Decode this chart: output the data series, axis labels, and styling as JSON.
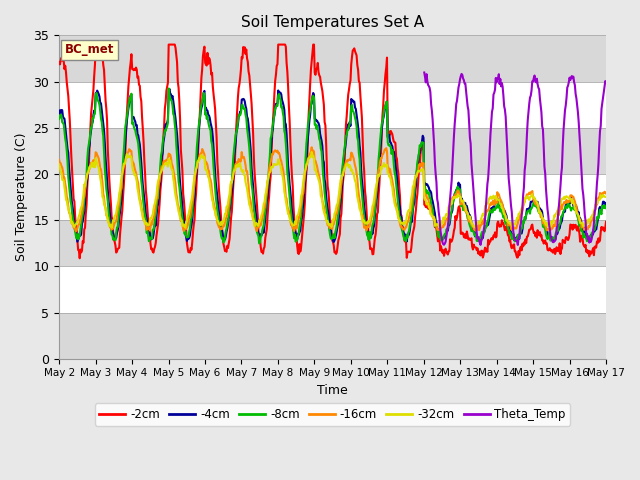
{
  "title": "Soil Temperatures Set A",
  "xlabel": "Time",
  "ylabel": "Soil Temperature (C)",
  "ylim": [
    0,
    35
  ],
  "annotation": "BC_met",
  "bg_color": "#e8e8e8",
  "white_band_color": "#ffffff",
  "gray_band_color": "#d8d8d8",
  "series": [
    {
      "label": "-2cm",
      "color": "#ff0000",
      "lw": 1.5
    },
    {
      "label": "-4cm",
      "color": "#000099",
      "lw": 1.5
    },
    {
      "label": "-8cm",
      "color": "#00bb00",
      "lw": 1.5
    },
    {
      "label": "-16cm",
      "color": "#ff8800",
      "lw": 1.5
    },
    {
      "label": "-32cm",
      "color": "#dddd00",
      "lw": 1.5
    },
    {
      "label": "Theta_Temp",
      "color": "#9900cc",
      "lw": 1.5
    }
  ],
  "tick_labels": [
    "May 2",
    "May 3",
    "May 4",
    "May 5",
    "May 6",
    "May 7",
    "May 8",
    "May 9",
    "May 10",
    "May 11",
    "May 12",
    "May 13",
    "May 14",
    "May 15",
    "May 16",
    "May 17"
  ],
  "yticks": [
    0,
    5,
    10,
    15,
    20,
    25,
    30,
    35
  ],
  "figsize": [
    6.4,
    4.8
  ],
  "dpi": 100
}
